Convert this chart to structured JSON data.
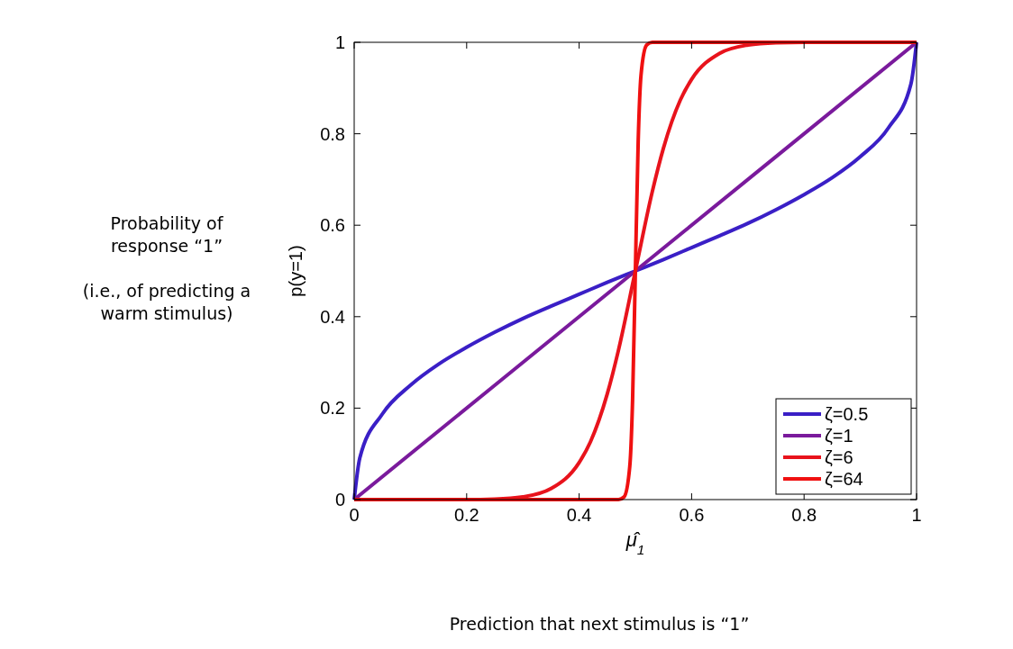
{
  "chart_data": {
    "type": "line",
    "xlabel": "μ̂$_{1}$",
    "ylabel": "p(y=1)",
    "xlim": [
      0,
      1
    ],
    "ylim": [
      0,
      1
    ],
    "xticks": [
      0,
      0.2,
      0.4,
      0.6,
      0.8,
      1
    ],
    "yticks": [
      0,
      0.2,
      0.4,
      0.6,
      0.8,
      1
    ],
    "grid": false,
    "legend": "bottom right",
    "line_style": "solid",
    "marker": "none",
    "annotations": [
      "Probability of response “1”\n\n(i.e., of predicting a warm stimulus)",
      "Prediction that next stimulus is “1”"
    ],
    "series": [
      {
        "name": "ζ=0.5",
        "color": "#3a1fc6",
        "x": [
          0,
          0.01,
          0.05,
          0.1,
          0.15,
          0.2,
          0.25,
          0.3,
          0.35,
          0.4,
          0.45,
          0.5,
          0.55,
          0.6,
          0.65,
          0.7,
          0.75,
          0.8,
          0.85,
          0.9,
          0.95,
          0.99,
          1
        ],
        "values": [
          0,
          0.091,
          0.187,
          0.25,
          0.296,
          0.333,
          0.366,
          0.396,
          0.423,
          0.449,
          0.475,
          0.5,
          0.525,
          0.551,
          0.577,
          0.604,
          0.634,
          0.667,
          0.704,
          0.75,
          0.813,
          0.909,
          1
        ]
      },
      {
        "name": "ζ=1",
        "color": "#7a1a9c",
        "x": [
          0,
          0.5,
          1
        ],
        "values": [
          0,
          0.5,
          1
        ]
      },
      {
        "name": "ζ=6",
        "color": "#e8131c",
        "x": [
          0,
          0.2,
          0.25,
          0.3,
          0.35,
          0.4,
          0.42,
          0.45,
          0.47,
          0.5,
          0.53,
          0.55,
          0.58,
          0.6,
          0.65,
          0.7,
          0.75,
          0.8,
          1
        ],
        "values": [
          0,
          0,
          0.001,
          0.006,
          0.024,
          0.081,
          0.126,
          0.231,
          0.327,
          0.5,
          0.673,
          0.769,
          0.874,
          0.919,
          0.976,
          0.994,
          0.999,
          1,
          1
        ]
      },
      {
        "name": "ζ=64",
        "color": "#f01010",
        "x": [
          0,
          0.47,
          0.48,
          0.49,
          0.495,
          0.5,
          0.505,
          0.51,
          0.52,
          0.53,
          1
        ],
        "values": [
          0,
          0,
          0.006,
          0.072,
          0.217,
          0.5,
          0.783,
          0.928,
          0.994,
          1,
          1
        ]
      }
    ]
  }
}
